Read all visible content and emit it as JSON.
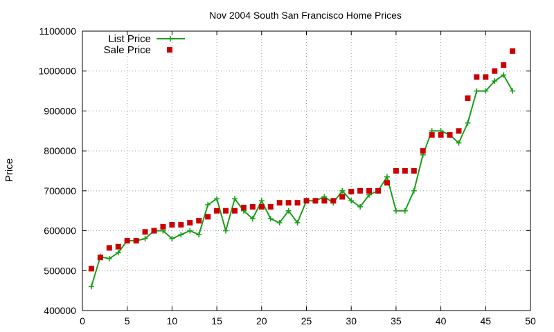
{
  "chart_data": {
    "type": "line",
    "title": "Nov 2004 South San Francisco Home Prices",
    "xlabel": "",
    "ylabel": "Price",
    "xlim": [
      0,
      50
    ],
    "ylim": [
      400000,
      1100000
    ],
    "xticks": [
      0,
      5,
      10,
      15,
      20,
      25,
      30,
      35,
      40,
      45,
      50
    ],
    "yticks": [
      400000,
      500000,
      600000,
      700000,
      800000,
      900000,
      1000000,
      1100000
    ],
    "grid": true,
    "legend_position": "top-left",
    "series": [
      {
        "name": "List Price",
        "style": "line-with-plus-markers",
        "color": "#1a9e1a",
        "x": [
          1,
          2,
          3,
          4,
          5,
          6,
          7,
          8,
          9,
          10,
          11,
          12,
          13,
          14,
          15,
          16,
          17,
          18,
          19,
          20,
          21,
          22,
          23,
          24,
          25,
          26,
          27,
          28,
          29,
          30,
          31,
          32,
          33,
          34,
          35,
          36,
          37,
          38,
          39,
          40,
          41,
          42,
          43,
          44,
          45,
          46,
          47,
          48
        ],
        "y": [
          460000,
          535000,
          530000,
          545000,
          575000,
          575000,
          580000,
          600000,
          600000,
          580000,
          590000,
          600000,
          590000,
          665000,
          680000,
          600000,
          680000,
          650000,
          630000,
          675000,
          630000,
          620000,
          650000,
          620000,
          675000,
          675000,
          685000,
          670000,
          700000,
          675000,
          660000,
          690000,
          700000,
          735000,
          650000,
          650000,
          700000,
          790000,
          850000,
          850000,
          840000,
          820000,
          870000,
          950000,
          950000,
          975000,
          990000,
          950000
        ]
      },
      {
        "name": "Sale Price",
        "style": "square-markers",
        "color": "#cc0000",
        "x": [
          1,
          2,
          3,
          4,
          5,
          6,
          7,
          8,
          9,
          10,
          11,
          12,
          13,
          14,
          15,
          16,
          17,
          18,
          19,
          20,
          21,
          22,
          23,
          24,
          25,
          26,
          27,
          28,
          29,
          30,
          31,
          32,
          33,
          34,
          35,
          36,
          37,
          38,
          39,
          40,
          41,
          42,
          43,
          44,
          45,
          46,
          47,
          48
        ],
        "y": [
          505000,
          533000,
          557000,
          560000,
          575000,
          575000,
          597000,
          600000,
          610000,
          615000,
          615000,
          620000,
          625000,
          635000,
          650000,
          650000,
          650000,
          658000,
          660000,
          660000,
          660000,
          670000,
          670000,
          670000,
          675000,
          675000,
          675000,
          675000,
          685000,
          698000,
          700000,
          700000,
          700000,
          720000,
          750000,
          750000,
          750000,
          800000,
          840000,
          840000,
          840000,
          850000,
          932000,
          985000,
          985000,
          1000000,
          1015000,
          1050000
        ]
      }
    ]
  }
}
